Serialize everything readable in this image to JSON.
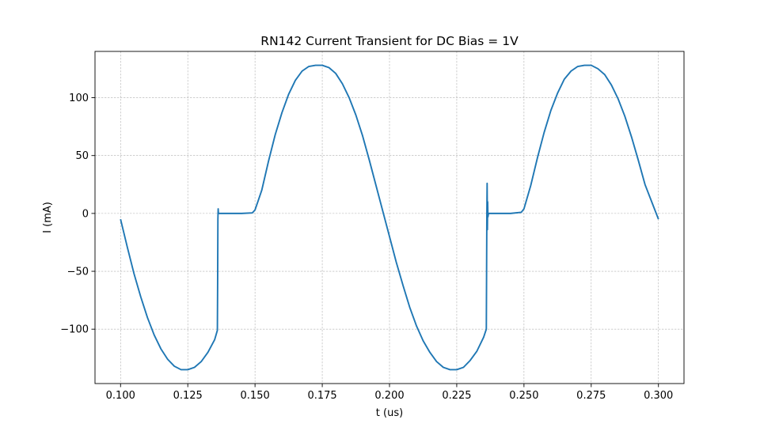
{
  "chart_data": {
    "type": "line",
    "title": "RN142 Current Transient for DC Bias = 1V",
    "xlabel": "t (us)",
    "ylabel": "I (mA)",
    "xlim": [
      0.0905,
      0.3095
    ],
    "ylim": [
      -147,
      140
    ],
    "xticks": [
      {
        "value": 0.1,
        "label": "0.100"
      },
      {
        "value": 0.125,
        "label": "0.125"
      },
      {
        "value": 0.15,
        "label": "0.150"
      },
      {
        "value": 0.175,
        "label": "0.175"
      },
      {
        "value": 0.2,
        "label": "0.200"
      },
      {
        "value": 0.225,
        "label": "0.225"
      },
      {
        "value": 0.25,
        "label": "0.250"
      },
      {
        "value": 0.275,
        "label": "0.275"
      },
      {
        "value": 0.3,
        "label": "0.300"
      }
    ],
    "yticks": [
      {
        "value": -100,
        "label": "−100"
      },
      {
        "value": -50,
        "label": "−50"
      },
      {
        "value": 0,
        "label": "0"
      },
      {
        "value": 50,
        "label": "50"
      },
      {
        "value": 100,
        "label": "100"
      }
    ],
    "grid": true,
    "series": [
      {
        "color": "#1f77b4",
        "points": [
          [
            0.1,
            -5
          ],
          [
            0.1025,
            -29
          ],
          [
            0.105,
            -52
          ],
          [
            0.1075,
            -72
          ],
          [
            0.11,
            -90
          ],
          [
            0.1125,
            -105
          ],
          [
            0.115,
            -117
          ],
          [
            0.1175,
            -126
          ],
          [
            0.12,
            -132
          ],
          [
            0.1225,
            -135
          ],
          [
            0.125,
            -135
          ],
          [
            0.1275,
            -133
          ],
          [
            0.13,
            -128
          ],
          [
            0.1325,
            -120
          ],
          [
            0.135,
            -109
          ],
          [
            0.136,
            -101
          ],
          [
            0.1361,
            -60
          ],
          [
            0.1362,
            -5
          ],
          [
            0.1363,
            4
          ],
          [
            0.1364,
            0
          ],
          [
            0.137,
            0
          ],
          [
            0.14,
            0
          ],
          [
            0.145,
            0
          ],
          [
            0.149,
            0.5
          ],
          [
            0.15,
            3
          ],
          [
            0.1525,
            20
          ],
          [
            0.155,
            45
          ],
          [
            0.1575,
            68
          ],
          [
            0.16,
            87
          ],
          [
            0.1625,
            103
          ],
          [
            0.165,
            115
          ],
          [
            0.1675,
            123
          ],
          [
            0.17,
            127
          ],
          [
            0.1725,
            128
          ],
          [
            0.175,
            128
          ],
          [
            0.1775,
            126
          ],
          [
            0.18,
            121
          ],
          [
            0.1825,
            112
          ],
          [
            0.185,
            100
          ],
          [
            0.1875,
            85
          ],
          [
            0.19,
            67
          ],
          [
            0.1925,
            46
          ],
          [
            0.195,
            24
          ],
          [
            0.1975,
            2
          ],
          [
            0.2,
            -20
          ],
          [
            0.2025,
            -42
          ],
          [
            0.205,
            -62
          ],
          [
            0.2075,
            -81
          ],
          [
            0.21,
            -97
          ],
          [
            0.2125,
            -110
          ],
          [
            0.215,
            -120
          ],
          [
            0.2175,
            -128
          ],
          [
            0.22,
            -133
          ],
          [
            0.2225,
            -135
          ],
          [
            0.225,
            -135
          ],
          [
            0.2275,
            -133
          ],
          [
            0.23,
            -127
          ],
          [
            0.2325,
            -119
          ],
          [
            0.235,
            -107
          ],
          [
            0.236,
            -100
          ],
          [
            0.2361,
            -50
          ],
          [
            0.2362,
            0
          ],
          [
            0.2363,
            26
          ],
          [
            0.2364,
            -14
          ],
          [
            0.2365,
            10
          ],
          [
            0.2366,
            -3
          ],
          [
            0.2368,
            0
          ],
          [
            0.24,
            0
          ],
          [
            0.245,
            0
          ],
          [
            0.249,
            1
          ],
          [
            0.25,
            4
          ],
          [
            0.2525,
            24
          ],
          [
            0.255,
            48
          ],
          [
            0.2575,
            70
          ],
          [
            0.26,
            89
          ],
          [
            0.2625,
            104
          ],
          [
            0.265,
            116
          ],
          [
            0.2675,
            123
          ],
          [
            0.27,
            127
          ],
          [
            0.2725,
            128
          ],
          [
            0.275,
            128
          ],
          [
            0.2775,
            125
          ],
          [
            0.28,
            120
          ],
          [
            0.2825,
            111
          ],
          [
            0.285,
            99
          ],
          [
            0.2875,
            84
          ],
          [
            0.29,
            66
          ],
          [
            0.2925,
            46
          ],
          [
            0.295,
            25
          ],
          [
            0.2975,
            10
          ],
          [
            0.3,
            -5
          ]
        ]
      }
    ]
  }
}
